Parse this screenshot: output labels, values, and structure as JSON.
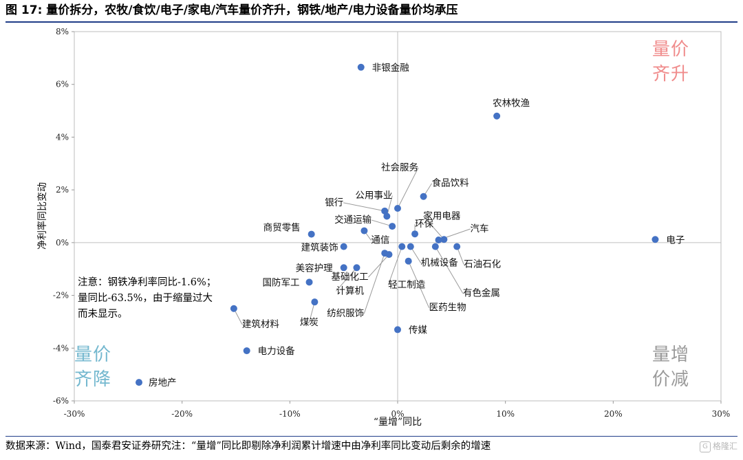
{
  "figure": {
    "title": "图 17:  量价拆分，农牧/食饮/电子/家电/汽车量价齐升，钢铁/地产/电力设备量价均承压",
    "source_note": "数据来源：Wind，国泰君安证券研究注：“量增”同比即剔除净利润累计增速中由净利率同比变动后剩余的增速",
    "watermark": "格隆汇",
    "watermark_badge": "G",
    "steel_note": "注意：钢铁净利率同比-1.6%；量同比-63.5%，由于缩量过大而未显示。"
  },
  "quadrants": {
    "top_right": {
      "line1": "量价",
      "line2": "齐升",
      "color": "#f08c8c"
    },
    "bottom_left": {
      "line1": "量价",
      "line2": "齐降",
      "color": "#74b8cf"
    },
    "bottom_right": {
      "line1": "量增",
      "line2": "价减",
      "color": "#9a9a9a"
    }
  },
  "chart_data": {
    "type": "scatter",
    "xlabel": "“量增”同比",
    "ylabel": "净利率同比变动",
    "xlim": [
      -30,
      30
    ],
    "ylim": [
      -6,
      8
    ],
    "x_ticks": [
      -30,
      -20,
      -10,
      0,
      10,
      20,
      30
    ],
    "x_tick_labels": [
      "-30%",
      "-20%",
      "-10%",
      "0%",
      "10%",
      "20%",
      "30%"
    ],
    "y_ticks": [
      -6,
      -4,
      -2,
      0,
      2,
      4,
      6,
      8
    ],
    "y_tick_labels": [
      "-6%",
      "-4%",
      "-2%",
      "0%",
      "2%",
      "4%",
      "6%",
      "8%"
    ],
    "grid": false,
    "marker_color": "#4472c4",
    "points": [
      {
        "name": "非银金融",
        "x": -3.4,
        "y": 6.65
      },
      {
        "name": "农林牧渔",
        "x": 9.2,
        "y": 4.8
      },
      {
        "name": "社会服务",
        "x": 0.0,
        "y": 1.3
      },
      {
        "name": "食品饮料",
        "x": 2.4,
        "y": 1.75
      },
      {
        "name": "公用事业",
        "x": -1.0,
        "y": 1.0
      },
      {
        "name": "银行",
        "x": -1.2,
        "y": 1.2
      },
      {
        "name": "交通运输",
        "x": -0.5,
        "y": 0.62
      },
      {
        "name": "商贸零售",
        "x": -8.0,
        "y": 0.32
      },
      {
        "name": "通信",
        "x": -3.1,
        "y": 0.45
      },
      {
        "name": "环保",
        "x": 1.6,
        "y": 0.33
      },
      {
        "name": "家用电器",
        "x": 4.3,
        "y": 0.12
      },
      {
        "name": "汽车",
        "x": 3.8,
        "y": 0.1
      },
      {
        "name": "电子",
        "x": 23.9,
        "y": 0.12
      },
      {
        "name": "建筑装饰",
        "x": -5.0,
        "y": -0.15
      },
      {
        "name": "石油石化",
        "x": 5.5,
        "y": -0.15
      },
      {
        "name": "美容护理",
        "x": -5.0,
        "y": -0.95
      },
      {
        "name": "计算机",
        "x": -3.8,
        "y": -0.95
      },
      {
        "name": "基础化工",
        "x": -0.8,
        "y": -0.45
      },
      {
        "name": "纺织服饰",
        "x": -1.2,
        "y": -0.4
      },
      {
        "name": "轻工制造",
        "x": 0.4,
        "y": -0.15
      },
      {
        "name": "机械设备",
        "x": 1.2,
        "y": -0.15
      },
      {
        "name": "医药生物",
        "x": 1.0,
        "y": -0.7
      },
      {
        "name": "有色金属",
        "x": 3.5,
        "y": -0.15
      },
      {
        "name": "国防军工",
        "x": -8.2,
        "y": -1.5
      },
      {
        "name": "煤炭",
        "x": -7.7,
        "y": -2.25
      },
      {
        "name": "建筑材料",
        "x": -15.2,
        "y": -2.5
      },
      {
        "name": "传媒",
        "x": 0.0,
        "y": -3.3
      },
      {
        "name": "电力设备",
        "x": -14.0,
        "y": -4.1
      },
      {
        "name": "房地产",
        "x": -24.0,
        "y": -5.3
      }
    ]
  }
}
